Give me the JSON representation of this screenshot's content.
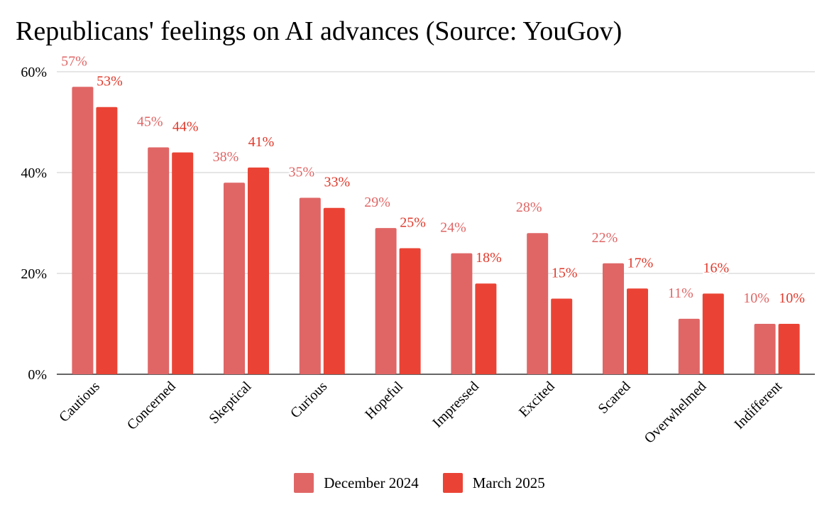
{
  "chart_data": {
    "type": "bar",
    "title": "Republicans' feelings on AI advances (Source: YouGov)",
    "categories": [
      "Cautious",
      "Concerned",
      "Skeptical",
      "Curious",
      "Hopeful",
      "Impressed",
      "Excited",
      "Scared",
      "Overwhelmed",
      "Indifferent"
    ],
    "series": [
      {
        "name": "December 2024",
        "color": "#e06666",
        "values": [
          57,
          45,
          38,
          35,
          29,
          24,
          28,
          22,
          11,
          10
        ],
        "labels": [
          "57%",
          "45%",
          "38%",
          "35%",
          "29%",
          "24%",
          "28%",
          "22%",
          "11%",
          "10%"
        ]
      },
      {
        "name": "March 2025",
        "color": "#ea4335",
        "values": [
          53,
          44,
          41,
          33,
          25,
          18,
          15,
          17,
          16,
          10
        ],
        "labels": [
          "53%",
          "44%",
          "41%",
          "33%",
          "25%",
          "18%",
          "15%",
          "17%",
          "16%",
          "10%"
        ]
      }
    ],
    "y_ticks": [
      0,
      20,
      40,
      60
    ],
    "y_tick_labels": [
      "0%",
      "20%",
      "40%",
      "60%"
    ],
    "ylim": [
      0,
      60
    ],
    "xlabel": "",
    "ylabel": "",
    "grid": true,
    "legend_position": "bottom"
  }
}
